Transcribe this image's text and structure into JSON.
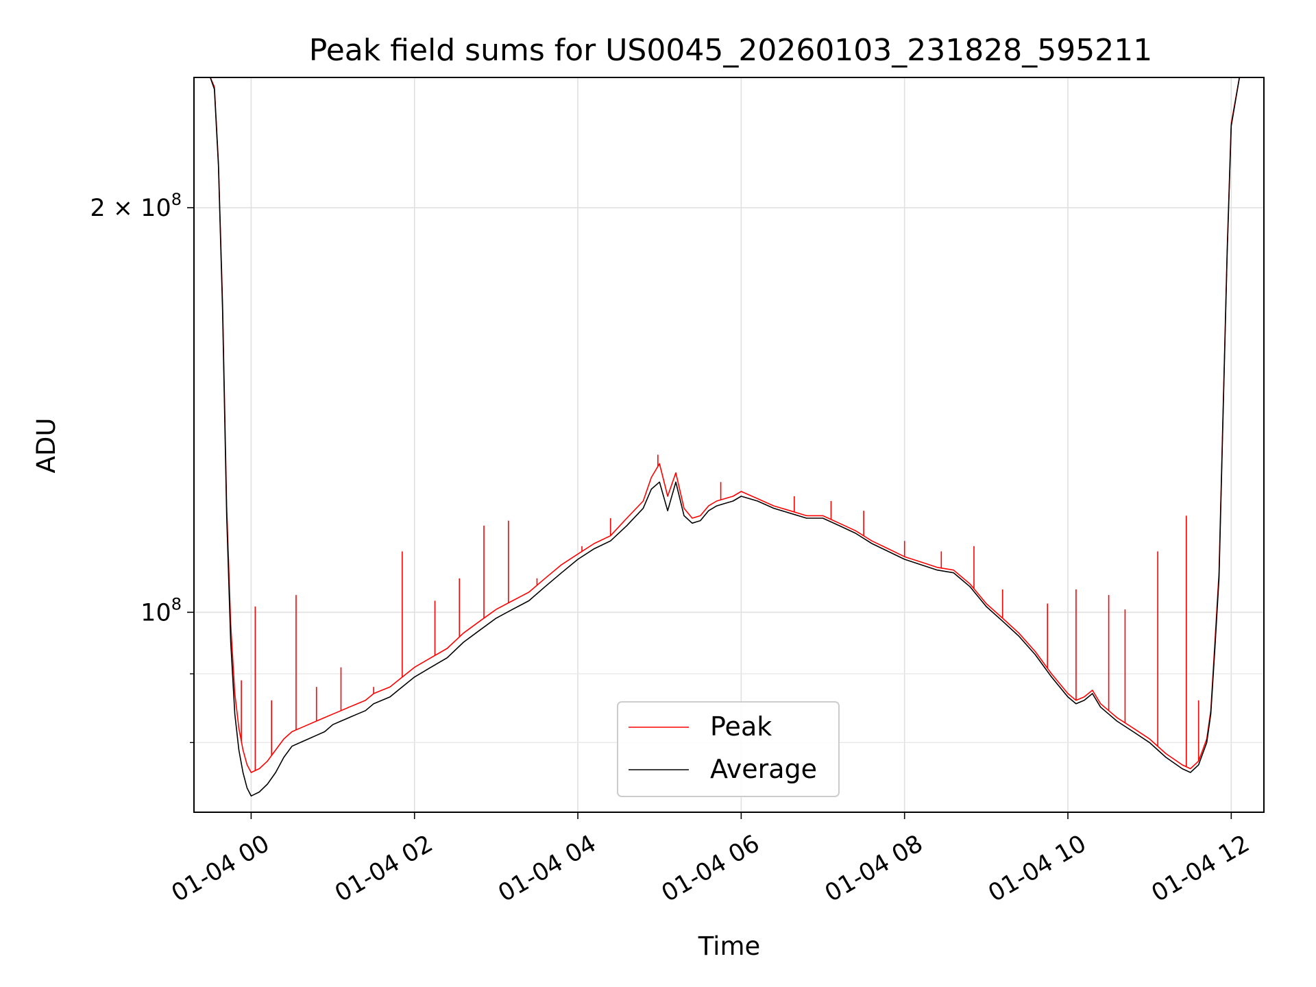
{
  "chart_data": {
    "type": "line",
    "title": "Peak field sums for US0045_20260103_231828_595211",
    "xlabel": "Time",
    "ylabel": "ADU",
    "yscale": "log",
    "ylim": [
      71000000,
      250000000
    ],
    "xlim_hours": [
      -0.7,
      12.4
    ],
    "x_unit": "hours since 01-04 00:00",
    "x_ticks": [
      {
        "hour": 0,
        "label": "01-04 00"
      },
      {
        "hour": 2,
        "label": "01-04 02"
      },
      {
        "hour": 4,
        "label": "01-04 04"
      },
      {
        "hour": 6,
        "label": "01-04 06"
      },
      {
        "hour": 8,
        "label": "01-04 08"
      },
      {
        "hour": 10,
        "label": "01-04 10"
      },
      {
        "hour": 12,
        "label": "01-04 12"
      }
    ],
    "y_major_ticks": [
      {
        "value": 100000000,
        "label_base": "10",
        "label_exp": "8",
        "label_prefix": ""
      },
      {
        "value": 200000000,
        "label_base": "10",
        "label_exp": "8",
        "label_prefix": "2 × "
      }
    ],
    "y_minor_ticks": [
      80000000,
      90000000
    ],
    "grid": true,
    "legend": {
      "position": "lower-center",
      "entries": [
        "Peak",
        "Average"
      ]
    },
    "colors": {
      "Peak": "#ff0000",
      "Average": "#000000"
    },
    "series": [
      {
        "name": "Average",
        "x": [
          -0.7,
          -0.5,
          -0.45,
          -0.4,
          -0.35,
          -0.3,
          -0.25,
          -0.2,
          -0.15,
          -0.1,
          -0.05,
          0.0,
          0.1,
          0.2,
          0.3,
          0.4,
          0.5,
          0.6,
          0.7,
          0.8,
          0.9,
          1.0,
          1.1,
          1.2,
          1.3,
          1.4,
          1.5,
          1.6,
          1.7,
          1.8,
          1.9,
          2.0,
          2.2,
          2.4,
          2.6,
          2.8,
          3.0,
          3.2,
          3.4,
          3.6,
          3.8,
          4.0,
          4.2,
          4.4,
          4.6,
          4.8,
          4.9,
          5.0,
          5.1,
          5.2,
          5.3,
          5.4,
          5.5,
          5.6,
          5.7,
          5.8,
          5.9,
          6.0,
          6.2,
          6.4,
          6.6,
          6.8,
          7.0,
          7.2,
          7.4,
          7.6,
          7.8,
          8.0,
          8.2,
          8.4,
          8.6,
          8.8,
          9.0,
          9.2,
          9.4,
          9.6,
          9.8,
          10.0,
          10.1,
          10.2,
          10.3,
          10.4,
          10.5,
          10.6,
          10.8,
          11.0,
          11.2,
          11.4,
          11.5,
          11.6,
          11.7,
          11.75,
          11.8,
          11.85,
          11.9,
          11.95,
          12.0,
          12.1,
          12.4
        ],
        "values": [
          250000000,
          250000000,
          245000000,
          215000000,
          168000000,
          118000000,
          95000000,
          84000000,
          79000000,
          76000000,
          74000000,
          73000000,
          73500000,
          74500000,
          76000000,
          78000000,
          79500000,
          80000000,
          80500000,
          81000000,
          81500000,
          82500000,
          83000000,
          83500000,
          84000000,
          84500000,
          85500000,
          86000000,
          86500000,
          87500000,
          88500000,
          89500000,
          91000000,
          92500000,
          95000000,
          97000000,
          99000000,
          100500000,
          102000000,
          104500000,
          107000000,
          109500000,
          111500000,
          113000000,
          116000000,
          119500000,
          123500000,
          125000000,
          119000000,
          125000000,
          118000000,
          116500000,
          117000000,
          119000000,
          120000000,
          120500000,
          121000000,
          122000000,
          121000000,
          119500000,
          118500000,
          117500000,
          117500000,
          116000000,
          114500000,
          112500000,
          111000000,
          109500000,
          108500000,
          107500000,
          107000000,
          104500000,
          101000000,
          98500000,
          96000000,
          93000000,
          89500000,
          86500000,
          85500000,
          86000000,
          87000000,
          85000000,
          84000000,
          83000000,
          81500000,
          80000000,
          78000000,
          76500000,
          76000000,
          77000000,
          80000000,
          84000000,
          94000000,
          106000000,
          140000000,
          185000000,
          230000000,
          250000000,
          250000000
        ]
      },
      {
        "name": "Peak",
        "x": [
          -0.7,
          -0.5,
          -0.45,
          -0.4,
          -0.35,
          -0.3,
          -0.25,
          -0.2,
          -0.15,
          -0.1,
          -0.05,
          0.0,
          0.1,
          0.2,
          0.3,
          0.4,
          0.5,
          0.6,
          0.7,
          0.8,
          0.9,
          1.0,
          1.1,
          1.2,
          1.3,
          1.4,
          1.5,
          1.6,
          1.7,
          1.8,
          1.9,
          2.0,
          2.2,
          2.4,
          2.6,
          2.8,
          3.0,
          3.2,
          3.4,
          3.6,
          3.8,
          4.0,
          4.2,
          4.4,
          4.6,
          4.8,
          4.9,
          5.0,
          5.1,
          5.2,
          5.3,
          5.4,
          5.5,
          5.6,
          5.7,
          5.8,
          5.9,
          6.0,
          6.2,
          6.4,
          6.6,
          6.8,
          7.0,
          7.2,
          7.4,
          7.6,
          7.8,
          8.0,
          8.2,
          8.4,
          8.6,
          8.8,
          9.0,
          9.2,
          9.4,
          9.6,
          9.8,
          10.0,
          10.1,
          10.2,
          10.3,
          10.4,
          10.5,
          10.6,
          10.8,
          11.0,
          11.2,
          11.4,
          11.5,
          11.6,
          11.7,
          11.75,
          11.8,
          11.85,
          11.9,
          11.95,
          12.0,
          12.1,
          12.4
        ],
        "values": [
          250000000,
          250000000,
          246000000,
          216000000,
          170000000,
          120000000,
          98000000,
          87000000,
          82000000,
          79000000,
          77000000,
          76000000,
          76500000,
          77500000,
          79000000,
          80500000,
          81500000,
          82000000,
          82500000,
          83000000,
          83500000,
          84000000,
          84500000,
          85000000,
          85500000,
          86000000,
          87000000,
          87500000,
          88000000,
          89000000,
          90000000,
          91000000,
          92500000,
          94000000,
          96500000,
          98500000,
          100500000,
          102000000,
          103500000,
          106000000,
          108500000,
          110500000,
          112500000,
          114000000,
          117500000,
          121000000,
          126000000,
          129000000,
          122000000,
          127000000,
          119500000,
          117500000,
          118000000,
          120000000,
          121000000,
          121500000,
          122000000,
          123000000,
          121500000,
          120000000,
          119000000,
          118000000,
          118000000,
          116500000,
          115000000,
          113000000,
          111500000,
          110000000,
          109000000,
          108000000,
          107500000,
          105000000,
          101500000,
          99000000,
          96500000,
          93500000,
          90000000,
          87000000,
          86000000,
          86500000,
          87500000,
          85500000,
          84500000,
          83500000,
          82000000,
          80500000,
          78500000,
          77000000,
          76500000,
          77500000,
          80500000,
          84500000,
          95000000,
          107000000,
          141000000,
          186000000,
          231000000,
          250000000,
          250000000
        ],
        "spikes": [
          {
            "x": -0.12,
            "value": 89000000
          },
          {
            "x": 0.05,
            "value": 101000000
          },
          {
            "x": 0.25,
            "value": 86000000
          },
          {
            "x": 0.55,
            "value": 103000000
          },
          {
            "x": 0.8,
            "value": 88000000
          },
          {
            "x": 1.1,
            "value": 91000000
          },
          {
            "x": 1.5,
            "value": 88000000
          },
          {
            "x": 1.85,
            "value": 111000000
          },
          {
            "x": 2.25,
            "value": 102000000
          },
          {
            "x": 2.55,
            "value": 106000000
          },
          {
            "x": 2.85,
            "value": 116000000
          },
          {
            "x": 3.15,
            "value": 117000000
          },
          {
            "x": 3.5,
            "value": 106000000
          },
          {
            "x": 4.05,
            "value": 112000000
          },
          {
            "x": 4.4,
            "value": 117500000
          },
          {
            "x": 4.98,
            "value": 131000000
          },
          {
            "x": 5.75,
            "value": 125000000
          },
          {
            "x": 6.65,
            "value": 122000000
          },
          {
            "x": 7.1,
            "value": 121000000
          },
          {
            "x": 7.5,
            "value": 119000000
          },
          {
            "x": 8.0,
            "value": 113000000
          },
          {
            "x": 8.45,
            "value": 111000000
          },
          {
            "x": 8.85,
            "value": 112000000
          },
          {
            "x": 9.2,
            "value": 104000000
          },
          {
            "x": 9.75,
            "value": 101500000
          },
          {
            "x": 10.1,
            "value": 104000000
          },
          {
            "x": 10.5,
            "value": 103000000
          },
          {
            "x": 10.7,
            "value": 100500000
          },
          {
            "x": 11.1,
            "value": 111000000
          },
          {
            "x": 11.45,
            "value": 118000000
          },
          {
            "x": 11.6,
            "value": 86000000
          }
        ]
      }
    ]
  }
}
